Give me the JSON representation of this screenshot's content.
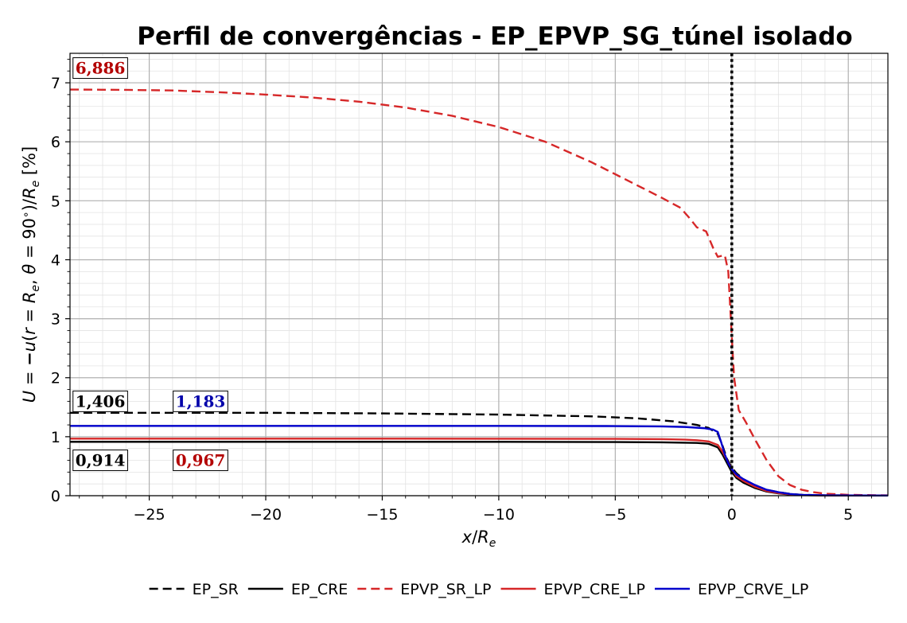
{
  "chart_data": {
    "type": "line",
    "title": "Perfil de convergências - EP_EPVP_SG_túnel isolado",
    "xlabel": "x/Re",
    "ylabel": "U = −u(r = Re, θ = 90°)/Re [%]",
    "xlim": [
      -28.4,
      6.7
    ],
    "ylim": [
      0,
      7.5
    ],
    "x_ticks": [
      -25,
      -20,
      -15,
      -10,
      -5,
      0,
      5
    ],
    "x_tick_labels": [
      "−25",
      "−20",
      "−15",
      "−10",
      "−5",
      "0",
      "5"
    ],
    "y_ticks": [
      0,
      1,
      2,
      3,
      4,
      5,
      6,
      7
    ],
    "y_tick_labels": [
      "0",
      "1",
      "2",
      "3",
      "4",
      "5",
      "6",
      "7"
    ],
    "grid": true,
    "legend_position": "bottom",
    "vertical_reference_line": {
      "x": 0,
      "style": "dotted",
      "color": "#000000"
    },
    "series": [
      {
        "name": "EP_SR",
        "color": "#000000",
        "dash": "dashed",
        "points": [
          [
            -28.4,
            1.406
          ],
          [
            -20,
            1.405
          ],
          [
            -15,
            1.395
          ],
          [
            -10,
            1.375
          ],
          [
            -6,
            1.345
          ],
          [
            -4,
            1.31
          ],
          [
            -2.5,
            1.26
          ],
          [
            -1.5,
            1.2
          ],
          [
            -1,
            1.15
          ],
          [
            -0.6,
            1.05
          ],
          [
            -0.4,
            0.85
          ],
          [
            -0.2,
            0.62
          ],
          [
            0,
            0.48
          ],
          [
            0.2,
            0.38
          ],
          [
            0.5,
            0.28
          ],
          [
            1,
            0.17
          ],
          [
            1.5,
            0.1
          ],
          [
            2,
            0.06
          ],
          [
            2.5,
            0.03
          ],
          [
            3,
            0.015
          ],
          [
            4,
            0.006
          ],
          [
            6.7,
            0.003
          ]
        ]
      },
      {
        "name": "EP_CRE",
        "color": "#000000",
        "dash": "solid",
        "points": [
          [
            -28.4,
            0.914
          ],
          [
            -20,
            0.914
          ],
          [
            -10,
            0.913
          ],
          [
            -5,
            0.91
          ],
          [
            -3,
            0.905
          ],
          [
            -1.5,
            0.895
          ],
          [
            -1,
            0.88
          ],
          [
            -0.6,
            0.82
          ],
          [
            -0.4,
            0.7
          ],
          [
            -0.2,
            0.55
          ],
          [
            0,
            0.4
          ],
          [
            0.2,
            0.3
          ],
          [
            0.5,
            0.22
          ],
          [
            1,
            0.13
          ],
          [
            1.5,
            0.07
          ],
          [
            2,
            0.04
          ],
          [
            2.5,
            0.02
          ],
          [
            3,
            0.01
          ],
          [
            4,
            0.004
          ],
          [
            6.7,
            0.002
          ]
        ]
      },
      {
        "name": "EPVP_SR_LP",
        "color": "#d62728",
        "dash": "dashed",
        "points": [
          [
            -28.4,
            6.886
          ],
          [
            -26,
            6.88
          ],
          [
            -24,
            6.87
          ],
          [
            -22,
            6.84
          ],
          [
            -20,
            6.8
          ],
          [
            -18,
            6.75
          ],
          [
            -16,
            6.68
          ],
          [
            -14,
            6.58
          ],
          [
            -12,
            6.44
          ],
          [
            -10,
            6.25
          ],
          [
            -8,
            6.0
          ],
          [
            -6,
            5.65
          ],
          [
            -5,
            5.45
          ],
          [
            -4,
            5.25
          ],
          [
            -3,
            5.05
          ],
          [
            -2.2,
            4.88
          ],
          [
            -1.8,
            4.7
          ],
          [
            -1.5,
            4.55
          ],
          [
            -1.1,
            4.48
          ],
          [
            -0.8,
            4.2
          ],
          [
            -0.6,
            4.05
          ],
          [
            -0.3,
            4.08
          ],
          [
            -0.15,
            3.8
          ],
          [
            0,
            2.7
          ],
          [
            0.1,
            2.0
          ],
          [
            0.3,
            1.45
          ],
          [
            0.6,
            1.25
          ],
          [
            1,
            0.95
          ],
          [
            1.5,
            0.6
          ],
          [
            2,
            0.33
          ],
          [
            2.5,
            0.18
          ],
          [
            3,
            0.1
          ],
          [
            3.5,
            0.06
          ],
          [
            4,
            0.035
          ],
          [
            5,
            0.015
          ],
          [
            6.7,
            0.005
          ]
        ]
      },
      {
        "name": "EPVP_CRE_LP",
        "color": "#d62728",
        "dash": "solid",
        "points": [
          [
            -28.4,
            0.967
          ],
          [
            -20,
            0.967
          ],
          [
            -10,
            0.966
          ],
          [
            -5,
            0.963
          ],
          [
            -3,
            0.958
          ],
          [
            -2,
            0.95
          ],
          [
            -1.5,
            0.94
          ],
          [
            -1,
            0.92
          ],
          [
            -0.6,
            0.86
          ],
          [
            -0.4,
            0.75
          ],
          [
            -0.2,
            0.6
          ],
          [
            0,
            0.45
          ],
          [
            0.2,
            0.33
          ],
          [
            0.5,
            0.25
          ],
          [
            1,
            0.15
          ],
          [
            1.5,
            0.08
          ],
          [
            2,
            0.045
          ],
          [
            2.5,
            0.025
          ],
          [
            3,
            0.012
          ],
          [
            4,
            0.005
          ],
          [
            6.7,
            0.002
          ]
        ]
      },
      {
        "name": "EPVP_CRVE_LP",
        "color": "#0000cc",
        "dash": "solid",
        "points": [
          [
            -28.4,
            1.183
          ],
          [
            -20,
            1.183
          ],
          [
            -10,
            1.183
          ],
          [
            -5,
            1.18
          ],
          [
            -3,
            1.175
          ],
          [
            -2,
            1.165
          ],
          [
            -1.2,
            1.145
          ],
          [
            -0.8,
            1.12
          ],
          [
            -0.6,
            1.08
          ],
          [
            -0.45,
            0.9
          ],
          [
            -0.3,
            0.7
          ],
          [
            -0.15,
            0.55
          ],
          [
            0,
            0.45
          ],
          [
            0.2,
            0.36
          ],
          [
            0.5,
            0.28
          ],
          [
            1,
            0.18
          ],
          [
            1.5,
            0.1
          ],
          [
            2,
            0.06
          ],
          [
            2.5,
            0.03
          ],
          [
            3,
            0.015
          ],
          [
            4,
            0.006
          ],
          [
            6.7,
            0.002
          ]
        ]
      }
    ],
    "annotations": [
      {
        "text": "6,886",
        "color": "#b30000",
        "x": -27.1,
        "y": 7.25
      },
      {
        "text": "1,406",
        "color": "#000000",
        "x": -27.1,
        "y": 1.6
      },
      {
        "text": "1,183",
        "color": "#0000aa",
        "x": -22.8,
        "y": 1.6
      },
      {
        "text": "0,914",
        "color": "#000000",
        "x": -27.1,
        "y": 0.6
      },
      {
        "text": "0,967",
        "color": "#b30000",
        "x": -22.8,
        "y": 0.6
      }
    ]
  }
}
